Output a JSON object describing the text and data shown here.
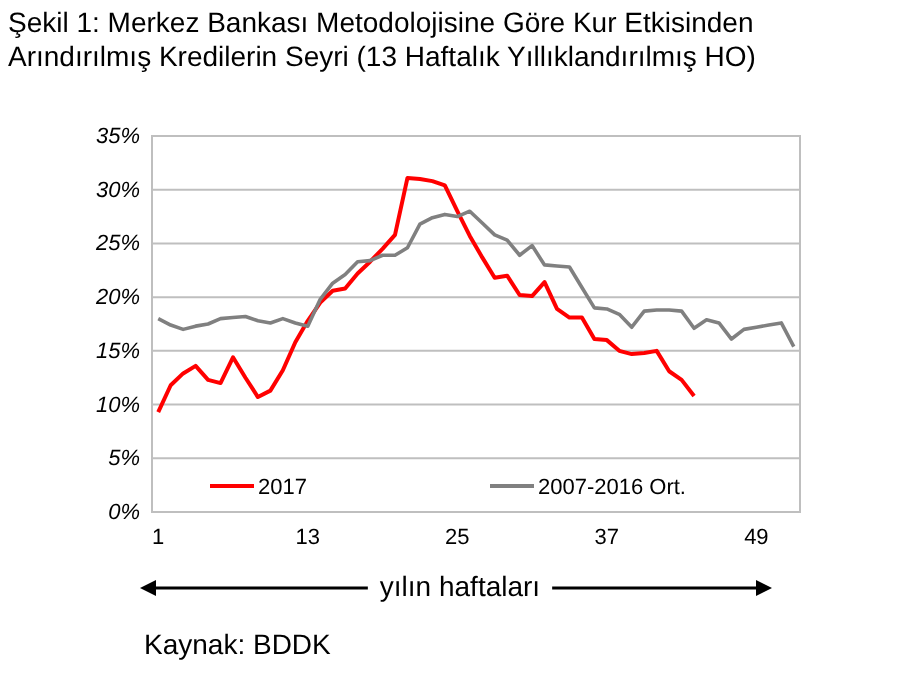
{
  "chart_data": {
    "type": "line",
    "title": "Şekil 1: Merkez Bankası Metodolojisine Göre Kur Etkisinden Arındırılmış Kredilerin Seyri (13 Haftalık Yıllıklandırılmış HO)",
    "xlabel": "yılın haftaları",
    "annotations": [
      "Kaynak: BDDK"
    ],
    "x": [
      1,
      2,
      3,
      4,
      5,
      6,
      7,
      8,
      9,
      10,
      11,
      12,
      13,
      14,
      15,
      16,
      17,
      18,
      19,
      20,
      21,
      22,
      23,
      24,
      25,
      26,
      27,
      28,
      29,
      30,
      31,
      32,
      33,
      34,
      35,
      36,
      37,
      38,
      39,
      40,
      41,
      42,
      43,
      44,
      45,
      46,
      47,
      48,
      49,
      50,
      51,
      52
    ],
    "series": [
      {
        "name": "2017",
        "color": "#ff0000",
        "values": [
          9.3,
          11.8,
          12.9,
          13.6,
          12.3,
          12.0,
          14.4,
          12.5,
          10.7,
          11.3,
          13.2,
          15.8,
          17.8,
          19.5,
          20.6,
          20.8,
          22.2,
          23.3,
          24.5,
          25.8,
          31.1,
          31.0,
          30.8,
          30.4,
          28.0,
          25.7,
          23.7,
          21.8,
          22.0,
          20.2,
          20.1,
          21.4,
          18.9,
          18.1,
          18.1,
          16.1,
          16.0,
          15.0,
          14.7,
          14.8,
          15.0,
          13.1,
          12.3,
          10.8,
          null,
          null,
          null,
          null,
          null,
          null,
          null,
          null
        ]
      },
      {
        "name": "2007-2016 Ort.",
        "color": "#808080",
        "values": [
          18.0,
          17.4,
          17.0,
          17.3,
          17.5,
          18.0,
          18.1,
          18.2,
          17.8,
          17.6,
          18.0,
          17.6,
          17.3,
          19.8,
          21.3,
          22.1,
          23.3,
          23.4,
          23.9,
          23.9,
          24.6,
          26.8,
          27.4,
          27.7,
          27.5,
          28.0,
          26.9,
          25.8,
          25.3,
          23.9,
          24.8,
          23.0,
          22.9,
          22.8,
          20.9,
          19.0,
          18.9,
          18.4,
          17.2,
          18.7,
          18.8,
          18.8,
          18.7,
          17.1,
          17.9,
          17.6,
          16.1,
          17.0,
          17.2,
          17.4,
          17.6,
          15.4
        ]
      }
    ],
    "xlim": [
      0.5,
      52.5
    ],
    "xticks": [
      1,
      13,
      25,
      37,
      49
    ],
    "ylim": [
      0,
      35
    ],
    "yticks": [
      {
        "value": 0,
        "label": "0%"
      },
      {
        "value": 5,
        "label": "5%"
      },
      {
        "value": 10,
        "label": "10%"
      },
      {
        "value": 15,
        "label": "15%"
      },
      {
        "value": 20,
        "label": "20%"
      },
      {
        "value": 25,
        "label": "25%"
      },
      {
        "value": 30,
        "label": "30%"
      },
      {
        "value": 35,
        "label": "35%"
      }
    ],
    "grid": "y",
    "legend": "bottom",
    "marker": "none",
    "line_style": "solid"
  }
}
